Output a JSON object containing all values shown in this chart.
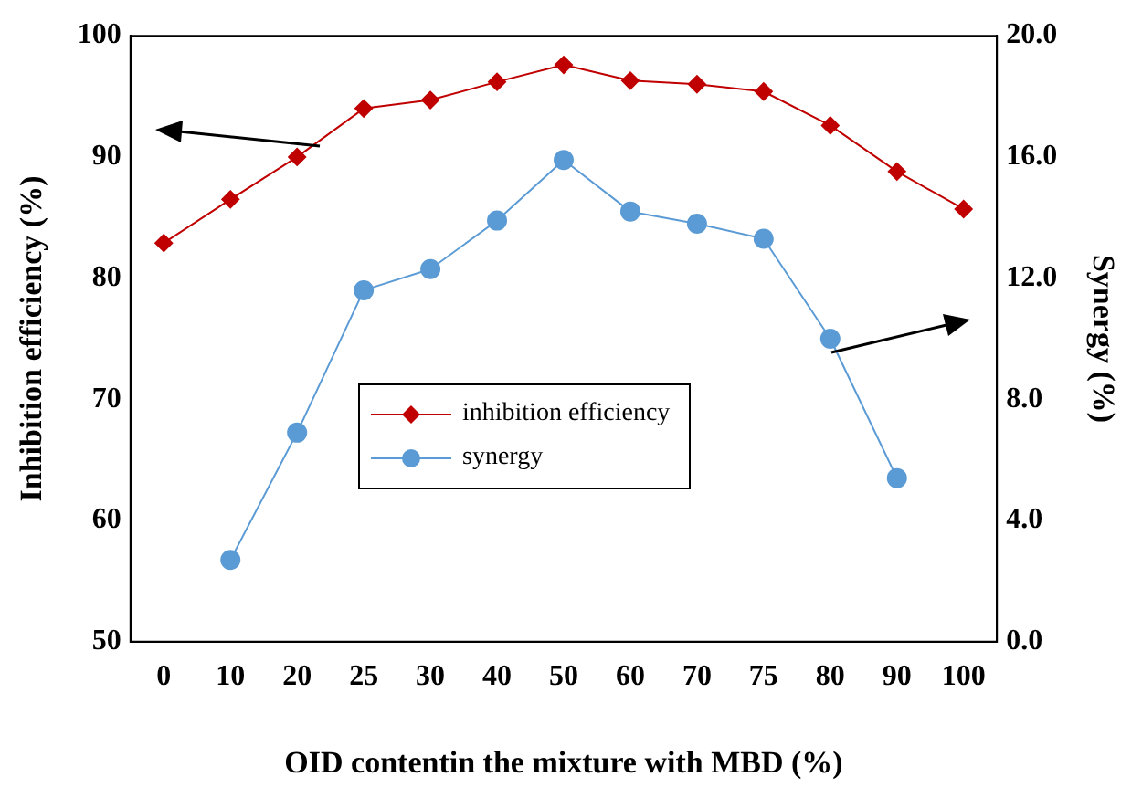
{
  "chart_data": {
    "type": "line",
    "xlabel": "OID contentin the mixture with MBD (%)",
    "ylabel": "Inhibition efficiency (%)",
    "y2label": "Synergy (%)",
    "categories": [
      "0",
      "10",
      "20",
      "25",
      "30",
      "40",
      "50",
      "60",
      "70",
      "75",
      "80",
      "90",
      "100"
    ],
    "series": [
      {
        "name": "inhibition efficiency",
        "color": "#c00000",
        "marker": "diamond",
        "values": [
          82.9,
          86.5,
          90.0,
          94.0,
          94.7,
          96.2,
          97.6,
          96.3,
          96.0,
          95.4,
          92.6,
          88.8,
          85.7
        ]
      },
      {
        "name": "synergy",
        "color": "#5b9bd5",
        "marker": "circle",
        "axis": "y2",
        "values": [
          null,
          2.7,
          6.9,
          11.6,
          12.3,
          13.9,
          15.9,
          14.2,
          13.8,
          13.3,
          10.0,
          5.4,
          null
        ]
      }
    ],
    "ylim": [
      50,
      100
    ],
    "yticks": [
      50,
      60,
      70,
      80,
      90,
      100
    ],
    "y2lim": [
      0,
      20
    ],
    "y2ticks": [
      {
        "value": 0,
        "label": "0.0"
      },
      {
        "value": 4,
        "label": "4.0"
      },
      {
        "value": 8,
        "label": "8.0"
      },
      {
        "value": 12,
        "label": "12.0"
      },
      {
        "value": 16,
        "label": "16.0"
      },
      {
        "value": 20,
        "label": "20.0"
      }
    ],
    "grid": false,
    "legend": "center left"
  }
}
